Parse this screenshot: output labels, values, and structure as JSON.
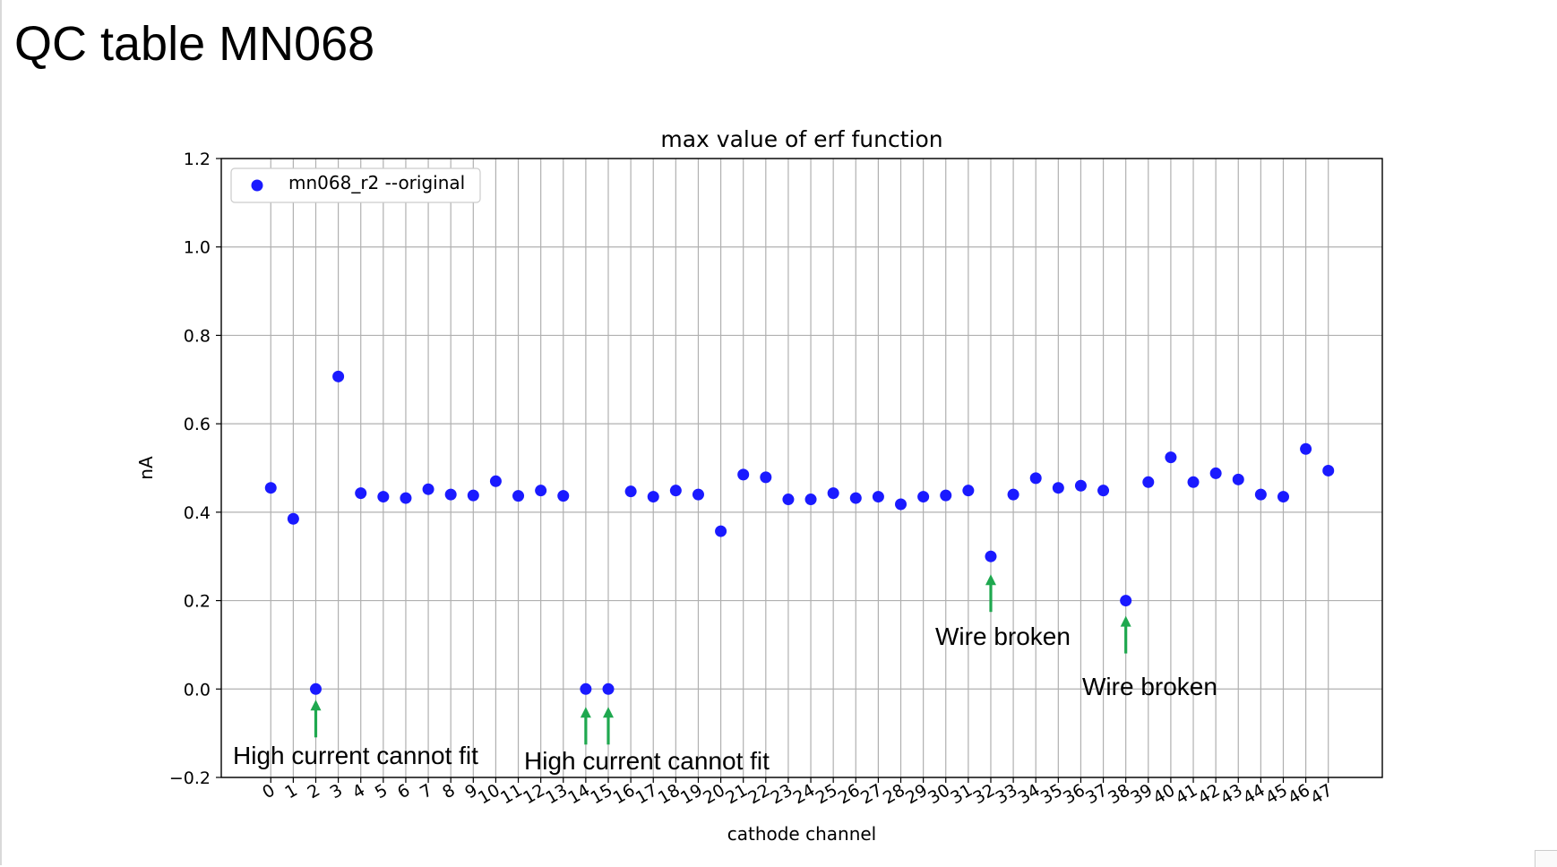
{
  "slide": {
    "title": "QC table MN068"
  },
  "chart_data": {
    "type": "scatter",
    "title": "max value of erf function",
    "xlabel": "cathode channel",
    "ylabel": "nA",
    "xlim": [
      -2.2,
      49.4
    ],
    "ylim": [
      -0.2,
      1.2
    ],
    "yticks": [
      -0.2,
      0.0,
      0.2,
      0.4,
      0.6,
      0.8,
      1.0,
      1.2
    ],
    "ytick_labels": [
      "−0.2",
      "0.0",
      "0.2",
      "0.4",
      "0.6",
      "0.8",
      "1.0",
      "1.2"
    ],
    "grid": true,
    "legend_position": "top-left",
    "series": [
      {
        "name": "mn068_r2 --original",
        "color": "#1a1aff",
        "x": [
          0,
          1,
          2,
          3,
          4,
          5,
          6,
          7,
          8,
          9,
          10,
          11,
          12,
          13,
          14,
          15,
          16,
          17,
          18,
          19,
          20,
          21,
          22,
          23,
          24,
          25,
          26,
          27,
          28,
          29,
          30,
          31,
          32,
          33,
          34,
          35,
          36,
          37,
          38,
          39,
          40,
          41,
          42,
          43,
          44,
          45,
          46,
          47
        ],
        "y": [
          0.455,
          0.385,
          0.0,
          0.707,
          0.443,
          0.435,
          0.432,
          0.452,
          0.44,
          0.438,
          0.47,
          0.437,
          0.449,
          0.437,
          0.0,
          0.0,
          0.447,
          0.435,
          0.449,
          0.44,
          0.357,
          0.485,
          0.479,
          0.429,
          0.429,
          0.443,
          0.432,
          0.435,
          0.418,
          0.435,
          0.438,
          0.449,
          0.3,
          0.44,
          0.477,
          0.455,
          0.46,
          0.449,
          0.2,
          0.468,
          0.524,
          0.468,
          0.488,
          0.474,
          0.44,
          0.435,
          0.543,
          0.494
        ]
      }
    ],
    "annotations": [
      {
        "text": "High current cannot fit",
        "arrows": [
          2
        ]
      },
      {
        "text": "High current cannot fit",
        "arrows": [
          14,
          15
        ]
      },
      {
        "text": "Wire broken",
        "arrows": [
          32
        ]
      },
      {
        "text": "Wire broken",
        "arrows": [
          38
        ]
      }
    ],
    "colors": {
      "arrow": "#1fa84f",
      "grid": "#b0b0b0",
      "axis": "#000000"
    }
  }
}
